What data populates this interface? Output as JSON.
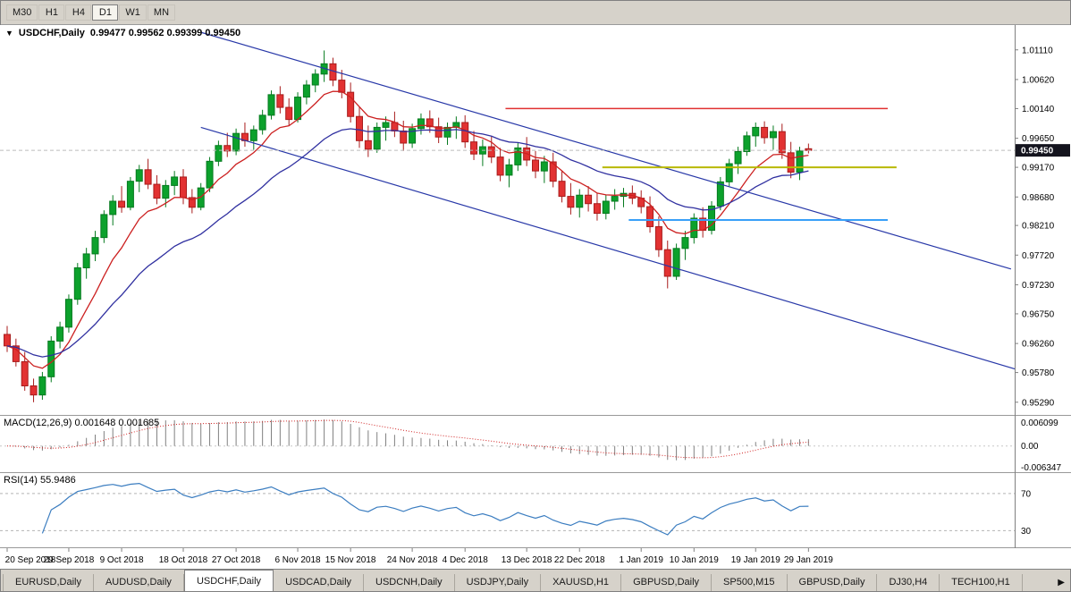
{
  "toolbar": {
    "timeframes": [
      {
        "label": "M30",
        "active": false
      },
      {
        "label": "H1",
        "active": false
      },
      {
        "label": "H4",
        "active": false
      },
      {
        "label": "D1",
        "active": true
      },
      {
        "label": "W1",
        "active": false
      },
      {
        "label": "MN",
        "active": false
      }
    ]
  },
  "chart_header": {
    "symbol_period": "USDCHF,Daily",
    "ohlc": "0.99477 0.99562 0.99399 0.99450"
  },
  "price_badge": "0.99450",
  "axis": {
    "y_ticks": [
      "1.01110",
      "1.00620",
      "1.00140",
      "0.99650",
      "0.99170",
      "0.98680",
      "0.98210",
      "0.97720",
      "0.97230",
      "0.96750",
      "0.96260",
      "0.95780",
      "0.95290"
    ],
    "x_ticks": [
      {
        "index": 0,
        "label": "20 Sep 2018"
      },
      {
        "index": 7,
        "label": "29 Sep 2018"
      },
      {
        "index": 13,
        "label": "9 Oct 2018"
      },
      {
        "index": 20,
        "label": "18 Oct 2018"
      },
      {
        "index": 26,
        "label": "27 Oct 2018"
      },
      {
        "index": 33,
        "label": "6 Nov 2018"
      },
      {
        "index": 39,
        "label": "15 Nov 2018"
      },
      {
        "index": 46,
        "label": "24 Nov 2018"
      },
      {
        "index": 52,
        "label": "4 Dec 2018"
      },
      {
        "index": 59,
        "label": "13 Dec 2018"
      },
      {
        "index": 65,
        "label": "22 Dec 2018"
      },
      {
        "index": 72,
        "label": "1 Jan 2019"
      },
      {
        "index": 78,
        "label": "10 Jan 2019"
      },
      {
        "index": 85,
        "label": "19 Jan 2019"
      },
      {
        "index": 91,
        "label": "29 Jan 2019"
      }
    ]
  },
  "panels": {
    "macd": {
      "header": "MACD(12,26,9) 0.001648 0.001685",
      "ticks": {
        "top": "0.006099",
        "zero": "0.00",
        "bottom": "-0.006347"
      }
    },
    "rsi": {
      "header": "RSI(14) 55.9486",
      "levels": [
        "70",
        "30"
      ]
    }
  },
  "tabs": {
    "scroll_right": "▶",
    "items": [
      {
        "label": "EURUSD,Daily",
        "active": false
      },
      {
        "label": "AUDUSD,Daily",
        "active": false
      },
      {
        "label": "USDCHF,Daily",
        "active": true
      },
      {
        "label": "USDCAD,Daily",
        "active": false
      },
      {
        "label": "USDCNH,Daily",
        "active": false
      },
      {
        "label": "USDJPY,Daily",
        "active": false
      },
      {
        "label": "XAUUSD,H1",
        "active": false
      },
      {
        "label": "GBPUSD,Daily",
        "active": false
      },
      {
        "label": "SP500,M15",
        "active": false
      },
      {
        "label": "GBPUSD,Daily",
        "active": false
      },
      {
        "label": "DJ30,H4",
        "active": false
      },
      {
        "label": "TECH100,H1",
        "active": false
      }
    ]
  },
  "chart_data": {
    "type": "candlestick",
    "symbol": "USDCHF",
    "timeframe": "Daily",
    "current": {
      "open": 0.99477,
      "high": 0.99562,
      "low": 0.99399,
      "close": 0.9945
    },
    "price_range": [
      0.9508,
      1.0152
    ],
    "candles": [
      [
        0.9641,
        0.9655,
        0.9612,
        0.9622
      ],
      [
        0.9622,
        0.9634,
        0.9588,
        0.9596
      ],
      [
        0.9596,
        0.9612,
        0.9548,
        0.9556
      ],
      [
        0.9556,
        0.9568,
        0.9529,
        0.9541
      ],
      [
        0.9541,
        0.9579,
        0.9533,
        0.9571
      ],
      [
        0.9571,
        0.9638,
        0.9562,
        0.963
      ],
      [
        0.963,
        0.9662,
        0.9618,
        0.9653
      ],
      [
        0.9653,
        0.9707,
        0.9644,
        0.9699
      ],
      [
        0.9699,
        0.9759,
        0.969,
        0.9751
      ],
      [
        0.9751,
        0.9784,
        0.9733,
        0.9774
      ],
      [
        0.9774,
        0.9812,
        0.9762,
        0.9801
      ],
      [
        0.9801,
        0.9846,
        0.9792,
        0.9839
      ],
      [
        0.9839,
        0.9871,
        0.9821,
        0.9861
      ],
      [
        0.9861,
        0.9886,
        0.9842,
        0.9851
      ],
      [
        0.9851,
        0.9901,
        0.9846,
        0.9894
      ],
      [
        0.9894,
        0.9921,
        0.9876,
        0.9913
      ],
      [
        0.9913,
        0.9931,
        0.9881,
        0.9889
      ],
      [
        0.9889,
        0.9904,
        0.9856,
        0.9866
      ],
      [
        0.9866,
        0.9896,
        0.9851,
        0.9887
      ],
      [
        0.9887,
        0.9911,
        0.9871,
        0.9901
      ],
      [
        0.9901,
        0.9914,
        0.9856,
        0.9867
      ],
      [
        0.9867,
        0.9881,
        0.9841,
        0.9851
      ],
      [
        0.9851,
        0.9891,
        0.9846,
        0.9883
      ],
      [
        0.9883,
        0.9934,
        0.9876,
        0.9927
      ],
      [
        0.9927,
        0.9961,
        0.9919,
        0.9953
      ],
      [
        0.9953,
        0.9974,
        0.9934,
        0.9944
      ],
      [
        0.9944,
        0.9981,
        0.9937,
        0.9973
      ],
      [
        0.9973,
        0.9991,
        0.9951,
        0.9961
      ],
      [
        0.9961,
        0.9986,
        0.9946,
        0.9979
      ],
      [
        0.9979,
        1.0012,
        0.9971,
        1.0003
      ],
      [
        1.0003,
        1.0044,
        0.9996,
        1.0037
      ],
      [
        1.0037,
        1.0051,
        1.0006,
        1.0016
      ],
      [
        1.0016,
        1.0031,
        0.9986,
        0.9996
      ],
      [
        0.9996,
        1.0041,
        0.9991,
        1.0033
      ],
      [
        1.0033,
        1.0061,
        1.0021,
        1.0053
      ],
      [
        1.0053,
        1.0079,
        1.0041,
        1.0071
      ],
      [
        1.0071,
        1.011,
        1.0058,
        1.0088
      ],
      [
        1.0088,
        1.0098,
        1.0051,
        1.0061
      ],
      [
        1.0061,
        1.0078,
        1.0031,
        1.0041
      ],
      [
        1.0041,
        1.0057,
        0.9991,
        1.0001
      ],
      [
        1.0001,
        1.0016,
        0.9949,
        0.9961
      ],
      [
        0.9961,
        0.9986,
        0.9934,
        0.9947
      ],
      [
        0.9947,
        0.9991,
        0.9941,
        0.9983
      ],
      [
        0.9983,
        1.0001,
        0.9961,
        0.9991
      ],
      [
        0.9991,
        1.0009,
        0.9967,
        0.9977
      ],
      [
        0.9977,
        0.9994,
        0.9944,
        0.9957
      ],
      [
        0.9957,
        0.9989,
        0.9949,
        0.9981
      ],
      [
        0.9981,
        1.0006,
        0.9971,
        0.9997
      ],
      [
        0.9997,
        1.0011,
        0.9974,
        0.9984
      ],
      [
        0.9984,
        0.9999,
        0.9957,
        0.9967
      ],
      [
        0.9967,
        0.9991,
        0.9954,
        0.9983
      ],
      [
        0.9983,
        1.0001,
        0.9964,
        0.9991
      ],
      [
        0.9991,
        1.0003,
        0.9949,
        0.9959
      ],
      [
        0.9959,
        0.9977,
        0.9929,
        0.9939
      ],
      [
        0.9939,
        0.9963,
        0.9919,
        0.9951
      ],
      [
        0.9951,
        0.9969,
        0.9924,
        0.9934
      ],
      [
        0.9934,
        0.9949,
        0.9894,
        0.9904
      ],
      [
        0.9904,
        0.9931,
        0.9884,
        0.9921
      ],
      [
        0.9921,
        0.9957,
        0.9911,
        0.9949
      ],
      [
        0.9949,
        0.9967,
        0.9919,
        0.9929
      ],
      [
        0.9929,
        0.9944,
        0.9899,
        0.9911
      ],
      [
        0.9911,
        0.9936,
        0.9891,
        0.9926
      ],
      [
        0.9926,
        0.9941,
        0.9884,
        0.9894
      ],
      [
        0.9894,
        0.9911,
        0.9859,
        0.9869
      ],
      [
        0.9869,
        0.9891,
        0.9839,
        0.9851
      ],
      [
        0.9851,
        0.9881,
        0.9834,
        0.9871
      ],
      [
        0.9871,
        0.9886,
        0.9844,
        0.9857
      ],
      [
        0.9857,
        0.9874,
        0.9829,
        0.9841
      ],
      [
        0.9841,
        0.9871,
        0.9831,
        0.9861
      ],
      [
        0.9861,
        0.9881,
        0.9847,
        0.9869
      ],
      [
        0.9869,
        0.9883,
        0.9851,
        0.9874
      ],
      [
        0.9874,
        0.9887,
        0.9856,
        0.9866
      ],
      [
        0.9866,
        0.9879,
        0.9841,
        0.9852
      ],
      [
        0.9852,
        0.9869,
        0.9809,
        0.9819
      ],
      [
        0.9819,
        0.9836,
        0.9769,
        0.9781
      ],
      [
        0.9781,
        0.9796,
        0.9717,
        0.9737
      ],
      [
        0.9737,
        0.9791,
        0.9731,
        0.9783
      ],
      [
        0.9783,
        0.9812,
        0.9764,
        0.9801
      ],
      [
        0.9801,
        0.9841,
        0.9791,
        0.9833
      ],
      [
        0.9833,
        0.9851,
        0.9801,
        0.9813
      ],
      [
        0.9813,
        0.9861,
        0.9806,
        0.9853
      ],
      [
        0.9853,
        0.9901,
        0.9846,
        0.9893
      ],
      [
        0.9893,
        0.9931,
        0.9886,
        0.9923
      ],
      [
        0.9923,
        0.9951,
        0.9906,
        0.9943
      ],
      [
        0.9943,
        0.9976,
        0.9936,
        0.9969
      ],
      [
        0.9969,
        0.9991,
        0.9951,
        0.9983
      ],
      [
        0.9983,
        0.9993,
        0.9956,
        0.9966
      ],
      [
        0.9966,
        0.9986,
        0.9946,
        0.9976
      ],
      [
        0.9976,
        0.9989,
        0.9931,
        0.9941
      ],
      [
        0.9941,
        0.9959,
        0.9899,
        0.9909
      ],
      [
        0.9909,
        0.9951,
        0.9896,
        0.9944
      ],
      [
        0.99477,
        0.99562,
        0.99399,
        0.9945
      ]
    ],
    "overlays": {
      "ma_fast": {
        "type": "ema",
        "period": 8,
        "color": "#cc2020"
      },
      "ma_slow": {
        "type": "ema",
        "period": 21,
        "color": "#3030a0"
      },
      "trendlines": [
        {
          "from_index": 22,
          "from_price": 1.014,
          "to_index": 114,
          "to_price": 0.9749,
          "color": "#2838a8"
        },
        {
          "from_index": 22,
          "from_price": 0.9983,
          "to_index": 117,
          "to_price": 0.9573,
          "color": "#2838a8"
        }
      ],
      "hlines": [
        {
          "price": 1.0014,
          "from_index": 57,
          "to_index": 100,
          "color": "#e03030",
          "width": 1.5
        },
        {
          "price": 0.9917,
          "from_index": 68,
          "to_index": 101,
          "color": "#b8b800",
          "width": 2
        },
        {
          "price": 0.983,
          "from_index": 71,
          "to_index": 100,
          "color": "#38a0f8",
          "width": 2
        }
      ],
      "bid_line": 0.9945
    },
    "indicators": {
      "macd": {
        "fast": 12,
        "slow": 26,
        "signal": 9,
        "value_main": 0.001648,
        "value_signal": 0.001685,
        "axis_max": 0.006099,
        "axis_min": -0.006347,
        "hist_color": "#808080",
        "signal_color": "#d02020"
      },
      "rsi": {
        "period": 14,
        "value": 55.9486,
        "levels": [
          70,
          30
        ],
        "color": "#3b7dc0",
        "scale": [
          12,
          92
        ]
      }
    },
    "colors": {
      "up_fill": "#0ca12c",
      "up_stroke": "#067a1f",
      "down_fill": "#e23232",
      "down_stroke": "#a81c1c",
      "background": "#ffffff"
    }
  }
}
